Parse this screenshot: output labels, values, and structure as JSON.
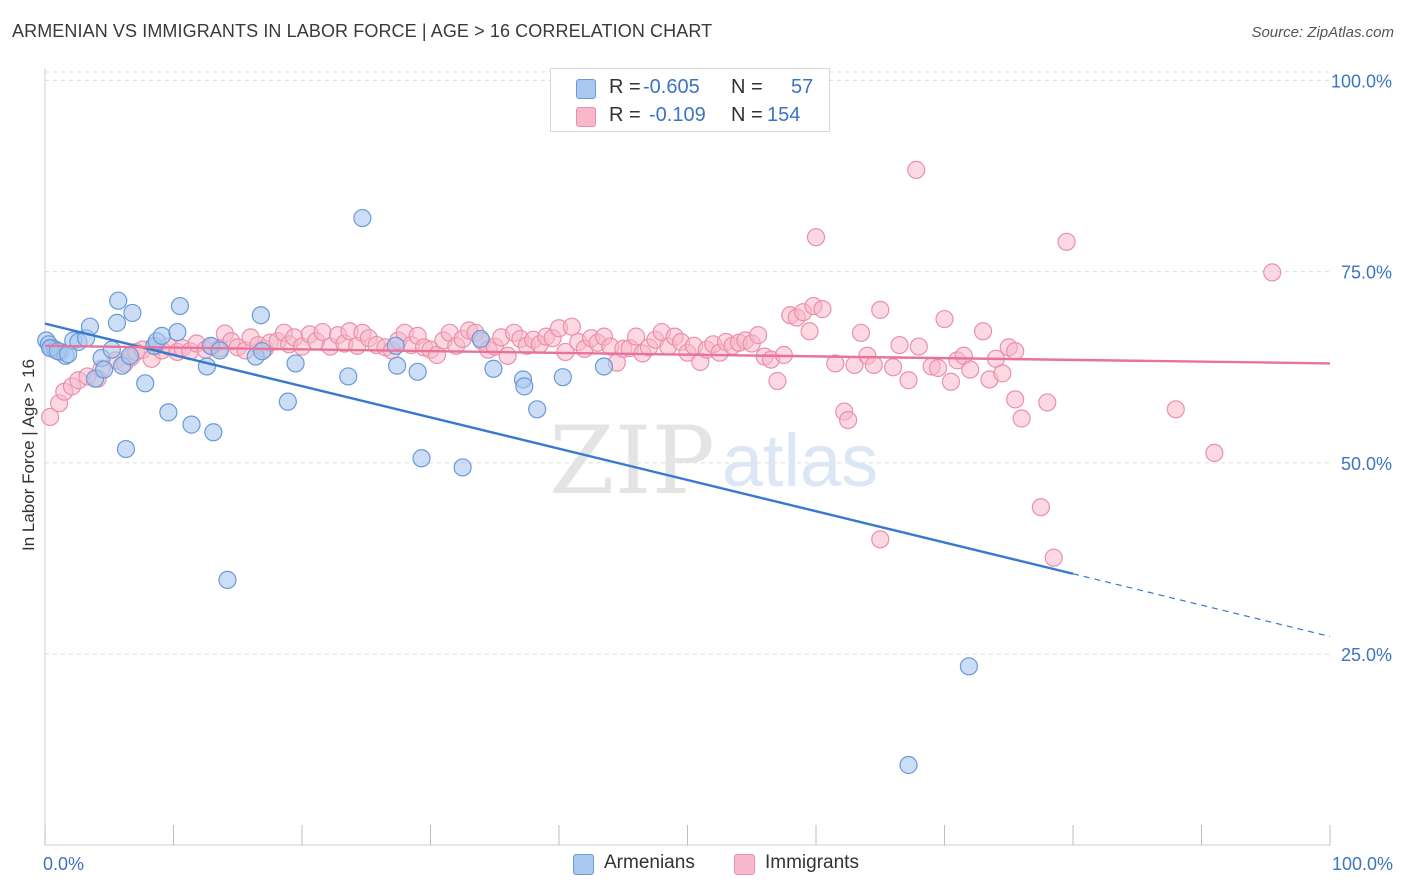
{
  "title": "ARMENIAN VS IMMIGRANTS IN LABOR FORCE | AGE > 16 CORRELATION CHART",
  "source": "Source: ZipAtlas.com",
  "watermark": {
    "zip": "ZIP",
    "atlas": "atlas"
  },
  "legend": {
    "armenians": {
      "r_label": "R =",
      "r_value": "-0.605",
      "n_label": "N =",
      "n_value": "57"
    },
    "immigrants": {
      "r_label": "R =",
      "r_value": "-0.109",
      "n_label": "N =",
      "n_value": "154"
    }
  },
  "bottom_legend": {
    "armenians": "Armenians",
    "immigrants": "Immigrants"
  },
  "colors": {
    "armenians_fill": "#a9c8ef",
    "armenians_stroke": "#6a9ad8",
    "armenians_line": "#3a78d0",
    "immigrants_fill": "#f7b8cb",
    "immigrants_stroke": "#ec8fac",
    "immigrants_line": "#e8729a",
    "axis_label": "#3c74c4",
    "grid": "#dcdcdc"
  },
  "chart_data": {
    "type": "scatter",
    "title": "ARMENIAN VS IMMIGRANTS IN LABOR FORCE | AGE > 16 CORRELATION CHART",
    "xlabel": "",
    "ylabel": "In Labor Force | Age > 16",
    "xlim": [
      0,
      100
    ],
    "ylim": [
      0,
      104
    ],
    "x_tick_labels": [
      "0.0%",
      "100.0%"
    ],
    "y_ticks": [
      25,
      50,
      75,
      100
    ],
    "y_tick_labels": [
      "25.0%",
      "50.0%",
      "75.0%",
      "100.0%"
    ],
    "grid": true,
    "legend_position": "top-center",
    "series": [
      {
        "name": "Armenians",
        "trend": {
          "x_start": 0,
          "y_start": 68.2,
          "x_solid_end": 80,
          "y_solid_end": 35.5,
          "x_dash_end": 100,
          "y_dash_end": 27.3
        },
        "points": [
          [
            0.1,
            66.0
          ],
          [
            0.3,
            65.5
          ],
          [
            0.5,
            65.0
          ],
          [
            0.8,
            64.8
          ],
          [
            1.2,
            64.5
          ],
          [
            1.6,
            64.0
          ],
          [
            2.2,
            66.0
          ],
          [
            2.6,
            65.8
          ],
          [
            3.2,
            66.3
          ],
          [
            3.5,
            67.8
          ],
          [
            3.9,
            61.0
          ],
          [
            4.4,
            63.7
          ],
          [
            4.6,
            62.2
          ],
          [
            5.2,
            64.8
          ],
          [
            5.6,
            68.3
          ],
          [
            5.7,
            71.2
          ],
          [
            6.0,
            62.7
          ],
          [
            6.3,
            51.8
          ],
          [
            6.8,
            69.6
          ],
          [
            7.8,
            60.4
          ],
          [
            8.5,
            65.3
          ],
          [
            8.7,
            65.9
          ],
          [
            9.1,
            66.6
          ],
          [
            9.6,
            56.6
          ],
          [
            10.3,
            67.1
          ],
          [
            10.5,
            70.5
          ],
          [
            11.4,
            55.0
          ],
          [
            12.6,
            62.6
          ],
          [
            12.9,
            65.3
          ],
          [
            13.1,
            54.0
          ],
          [
            13.6,
            64.7
          ],
          [
            14.2,
            34.7
          ],
          [
            16.4,
            63.9
          ],
          [
            16.8,
            69.3
          ],
          [
            16.9,
            64.6
          ],
          [
            18.9,
            58.0
          ],
          [
            19.5,
            63.0
          ],
          [
            23.6,
            61.3
          ],
          [
            24.7,
            82.0
          ],
          [
            27.3,
            65.3
          ],
          [
            27.4,
            62.7
          ],
          [
            29.0,
            61.9
          ],
          [
            29.3,
            50.6
          ],
          [
            32.5,
            49.4
          ],
          [
            33.9,
            66.2
          ],
          [
            34.9,
            62.3
          ],
          [
            37.2,
            60.9
          ],
          [
            37.3,
            60.0
          ],
          [
            38.3,
            57.0
          ],
          [
            40.3,
            61.2
          ],
          [
            43.5,
            62.6
          ],
          [
            71.9,
            23.4
          ],
          [
            67.2,
            10.5
          ],
          [
            0.4,
            65.0
          ],
          [
            1.0,
            64.6
          ],
          [
            1.8,
            64.2
          ],
          [
            6.6,
            64.0
          ]
        ]
      },
      {
        "name": "Immigrants",
        "trend": {
          "x_start": 0,
          "y_start": 65.3,
          "x_end": 100,
          "y_end": 63.0
        },
        "points": [
          [
            0.4,
            56.0
          ],
          [
            1.1,
            57.8
          ],
          [
            1.5,
            59.3
          ],
          [
            2.1,
            60.0
          ],
          [
            2.6,
            60.8
          ],
          [
            3.3,
            61.3
          ],
          [
            4.1,
            61.0
          ],
          [
            4.4,
            62.3
          ],
          [
            5.5,
            63.4
          ],
          [
            6.2,
            63.0
          ],
          [
            6.7,
            63.8
          ],
          [
            7.1,
            64.5
          ],
          [
            7.6,
            64.8
          ],
          [
            8.3,
            63.6
          ],
          [
            8.6,
            65.2
          ],
          [
            9.1,
            64.7
          ],
          [
            9.6,
            65.2
          ],
          [
            10.3,
            64.5
          ],
          [
            10.7,
            65.0
          ],
          [
            11.3,
            64.6
          ],
          [
            11.8,
            65.6
          ],
          [
            12.5,
            64.8
          ],
          [
            13.0,
            65.2
          ],
          [
            13.6,
            65.0
          ],
          [
            14.0,
            66.9
          ],
          [
            14.5,
            65.9
          ],
          [
            15.0,
            65.1
          ],
          [
            15.6,
            64.7
          ],
          [
            16.0,
            66.4
          ],
          [
            16.6,
            65.4
          ],
          [
            17.1,
            64.9
          ],
          [
            17.5,
            65.7
          ],
          [
            18.1,
            65.9
          ],
          [
            18.6,
            67.0
          ],
          [
            19.0,
            65.5
          ],
          [
            19.4,
            66.4
          ],
          [
            20.0,
            65.2
          ],
          [
            20.6,
            66.8
          ],
          [
            21.1,
            65.9
          ],
          [
            21.6,
            67.1
          ],
          [
            22.2,
            65.2
          ],
          [
            22.8,
            66.7
          ],
          [
            23.3,
            65.6
          ],
          [
            23.7,
            67.2
          ],
          [
            24.3,
            65.3
          ],
          [
            24.7,
            67.0
          ],
          [
            25.2,
            66.3
          ],
          [
            25.8,
            65.4
          ],
          [
            26.5,
            65.1
          ],
          [
            27.0,
            64.7
          ],
          [
            27.5,
            66.0
          ],
          [
            28.0,
            67.0
          ],
          [
            28.5,
            65.4
          ],
          [
            29.0,
            66.6
          ],
          [
            29.5,
            65.1
          ],
          [
            30.0,
            64.8
          ],
          [
            30.5,
            64.1
          ],
          [
            31.0,
            66.0
          ],
          [
            31.5,
            67.0
          ],
          [
            32.0,
            65.3
          ],
          [
            32.5,
            66.2
          ],
          [
            33.0,
            67.3
          ],
          [
            33.5,
            67.0
          ],
          [
            34.0,
            65.9
          ],
          [
            34.5,
            64.8
          ],
          [
            35.0,
            65.2
          ],
          [
            35.5,
            66.4
          ],
          [
            36.0,
            64.0
          ],
          [
            36.5,
            67.0
          ],
          [
            37.0,
            66.2
          ],
          [
            37.5,
            65.3
          ],
          [
            38.0,
            66.1
          ],
          [
            38.5,
            65.5
          ],
          [
            39.0,
            66.5
          ],
          [
            39.5,
            66.3
          ],
          [
            40.0,
            67.6
          ],
          [
            40.5,
            64.5
          ],
          [
            41.0,
            67.8
          ],
          [
            41.5,
            65.8
          ],
          [
            42.0,
            64.9
          ],
          [
            42.5,
            66.3
          ],
          [
            43.0,
            65.7
          ],
          [
            43.5,
            66.5
          ],
          [
            44.0,
            65.2
          ],
          [
            44.5,
            63.1
          ],
          [
            45.0,
            64.9
          ],
          [
            45.5,
            65.0
          ],
          [
            46.0,
            66.5
          ],
          [
            46.5,
            64.3
          ],
          [
            47.0,
            65.1
          ],
          [
            47.5,
            66.1
          ],
          [
            48.0,
            67.1
          ],
          [
            48.5,
            65.2
          ],
          [
            49.0,
            66.5
          ],
          [
            49.5,
            65.8
          ],
          [
            50.0,
            64.4
          ],
          [
            50.5,
            65.3
          ],
          [
            51.0,
            63.2
          ],
          [
            51.5,
            64.8
          ],
          [
            52.0,
            65.5
          ],
          [
            52.5,
            64.4
          ],
          [
            53.0,
            65.8
          ],
          [
            53.5,
            65.3
          ],
          [
            54.0,
            65.7
          ],
          [
            54.5,
            66.0
          ],
          [
            55.0,
            65.6
          ],
          [
            55.5,
            66.7
          ],
          [
            56.0,
            63.9
          ],
          [
            56.5,
            63.5
          ],
          [
            57.0,
            60.7
          ],
          [
            57.5,
            64.1
          ],
          [
            58.0,
            69.3
          ],
          [
            58.5,
            69.0
          ],
          [
            59.0,
            69.7
          ],
          [
            59.5,
            67.2
          ],
          [
            59.8,
            70.5
          ],
          [
            60.5,
            70.1
          ],
          [
            61.5,
            63.0
          ],
          [
            62.2,
            56.7
          ],
          [
            62.5,
            55.6
          ],
          [
            63.0,
            62.8
          ],
          [
            63.5,
            67.0
          ],
          [
            64.0,
            64.0
          ],
          [
            64.5,
            62.8
          ],
          [
            65.0,
            70.0
          ],
          [
            66.0,
            62.5
          ],
          [
            66.5,
            65.4
          ],
          [
            67.2,
            60.8
          ],
          [
            68.0,
            65.2
          ],
          [
            69.0,
            62.6
          ],
          [
            69.5,
            62.4
          ],
          [
            70.5,
            60.6
          ],
          [
            71.0,
            63.4
          ],
          [
            71.5,
            64.0
          ],
          [
            72.0,
            62.2
          ],
          [
            73.0,
            67.2
          ],
          [
            73.5,
            60.9
          ],
          [
            74.0,
            63.6
          ],
          [
            74.5,
            61.7
          ],
          [
            75.0,
            65.1
          ],
          [
            75.5,
            58.3
          ],
          [
            76.0,
            55.8
          ],
          [
            77.5,
            44.2
          ],
          [
            78.0,
            57.9
          ],
          [
            78.5,
            37.6
          ],
          [
            79.5,
            78.9
          ],
          [
            75.5,
            64.6
          ],
          [
            70.0,
            68.8
          ],
          [
            67.8,
            88.3
          ],
          [
            65.0,
            40.0
          ],
          [
            95.5,
            74.9
          ],
          [
            88.0,
            57.0
          ],
          [
            91.0,
            51.3
          ],
          [
            60.0,
            79.5
          ]
        ]
      }
    ]
  }
}
